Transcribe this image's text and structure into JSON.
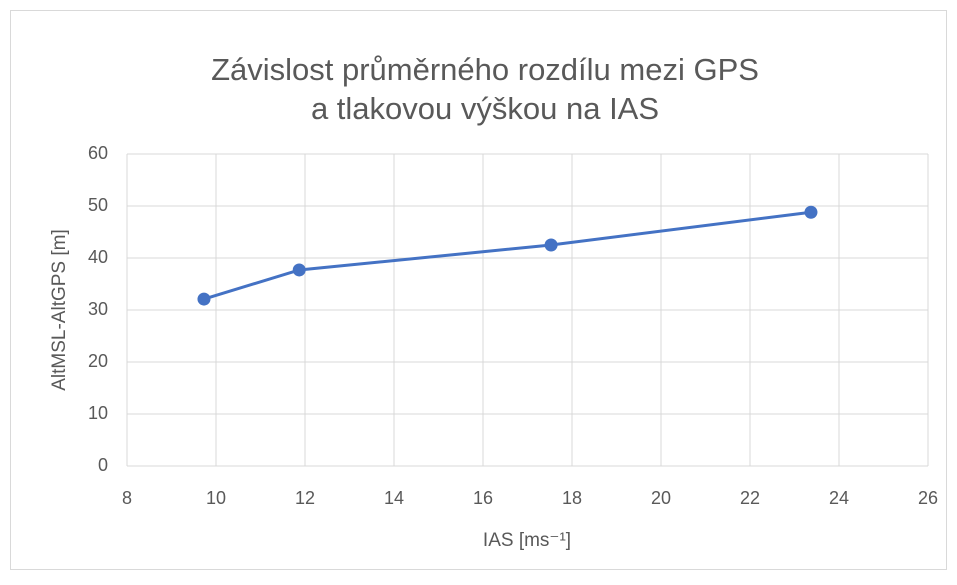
{
  "chart_data": {
    "type": "scatter_line",
    "title": [
      "Závislost průměrného rozdílu mezi GPS",
      "a tlakovou výškou na IAS"
    ],
    "x_label": "IAS [ms⁻¹]",
    "y_label": "AltMSL-AltGPS [m]",
    "x": [
      9.73,
      11.87,
      17.53,
      23.37
    ],
    "series": [
      {
        "name": "AltMSL-AltGPS",
        "color": "#4472c4",
        "values": [
          32.1,
          37.7,
          42.5,
          48.8
        ]
      }
    ],
    "xlim": [
      8,
      26
    ],
    "xticks": [
      8,
      10,
      12,
      14,
      16,
      18,
      20,
      22,
      24,
      26
    ],
    "ylim": [
      0,
      60
    ],
    "yticks": [
      0,
      10,
      20,
      30,
      40,
      50,
      60
    ],
    "grid": true
  }
}
